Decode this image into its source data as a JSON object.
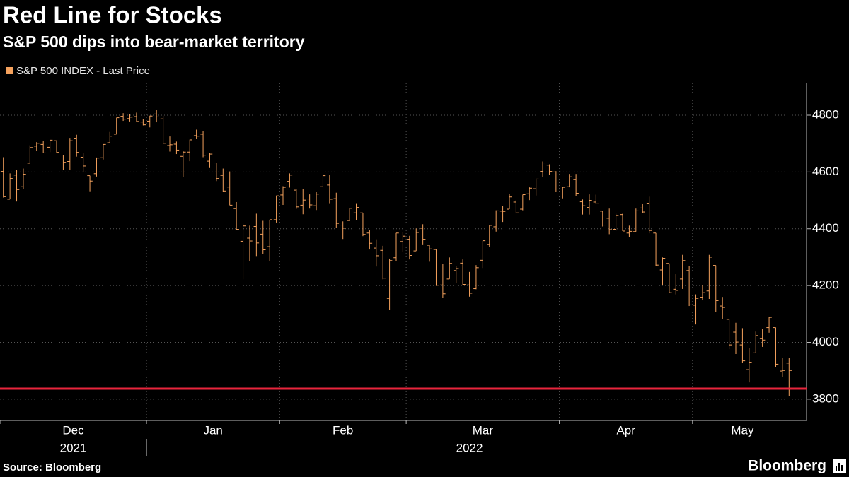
{
  "chart_data": {
    "type": "ohlc",
    "title": "Red Line for Stocks",
    "subtitle": "S&P 500 dips into bear-market territory",
    "source": "Source: Bloomberg",
    "brand": "Bloomberg",
    "ylim": [
      3725,
      4912
    ],
    "yticks": [
      3800,
      4000,
      4200,
      4400,
      4600,
      4800
    ],
    "grid": true,
    "legend": "top-left",
    "reference_line": {
      "value": 3837,
      "color": "#e8253c"
    },
    "categories": [
      "Dec",
      "Dec",
      "Dec",
      "Dec",
      "Dec",
      "Dec",
      "Dec",
      "Dec",
      "Dec",
      "Dec",
      "Dec",
      "Dec",
      "Dec",
      "Dec",
      "Dec",
      "Dec",
      "Dec",
      "Dec",
      "Dec",
      "Dec",
      "Dec",
      "Dec",
      "Jan",
      "Jan",
      "Jan",
      "Jan",
      "Jan",
      "Jan",
      "Jan",
      "Jan",
      "Jan",
      "Jan",
      "Jan",
      "Jan",
      "Jan",
      "Jan",
      "Jan",
      "Jan",
      "Jan",
      "Jan",
      "Jan",
      "Jan",
      "Feb",
      "Feb",
      "Feb",
      "Feb",
      "Feb",
      "Feb",
      "Feb",
      "Feb",
      "Feb",
      "Feb",
      "Feb",
      "Feb",
      "Feb",
      "Feb",
      "Feb",
      "Feb",
      "Feb",
      "Feb",
      "Feb",
      "Mar",
      "Mar",
      "Mar",
      "Mar",
      "Mar",
      "Mar",
      "Mar",
      "Mar",
      "Mar",
      "Mar",
      "Mar",
      "Mar",
      "Mar",
      "Mar",
      "Mar",
      "Mar",
      "Mar",
      "Mar",
      "Mar",
      "Mar",
      "Mar",
      "Mar",
      "Mar",
      "Apr",
      "Apr",
      "Apr",
      "Apr",
      "Apr",
      "Apr",
      "Apr",
      "Apr",
      "Apr",
      "Apr",
      "Apr",
      "Apr",
      "Apr",
      "Apr",
      "Apr",
      "Apr",
      "Apr",
      "Apr",
      "Apr",
      "Apr",
      "May",
      "May",
      "May",
      "May",
      "May",
      "May",
      "May",
      "May",
      "May",
      "May",
      "May",
      "May",
      "May",
      "May",
      "May"
    ],
    "years": [
      "2021",
      "2021",
      "2021",
      "2021",
      "2021",
      "2021",
      "2021",
      "2021",
      "2021",
      "2021",
      "2021",
      "2021",
      "2021",
      "2021",
      "2021",
      "2021",
      "2021",
      "2021",
      "2021",
      "2021",
      "2021",
      "2021",
      "2022",
      "2022",
      "2022",
      "2022",
      "2022",
      "2022",
      "2022",
      "2022",
      "2022",
      "2022",
      "2022",
      "2022",
      "2022",
      "2022",
      "2022",
      "2022",
      "2022",
      "2022",
      "2022",
      "2022",
      "2022",
      "2022",
      "2022",
      "2022",
      "2022",
      "2022",
      "2022",
      "2022",
      "2022",
      "2022",
      "2022",
      "2022",
      "2022",
      "2022",
      "2022",
      "2022",
      "2022",
      "2022",
      "2022",
      "2022",
      "2022",
      "2022",
      "2022",
      "2022",
      "2022",
      "2022",
      "2022",
      "2022",
      "2022",
      "2022",
      "2022",
      "2022",
      "2022",
      "2022",
      "2022",
      "2022",
      "2022",
      "2022",
      "2022",
      "2022",
      "2022",
      "2022",
      "2022",
      "2022",
      "2022",
      "2022",
      "2022",
      "2022",
      "2022",
      "2022",
      "2022",
      "2022",
      "2022",
      "2022",
      "2022",
      "2022",
      "2022",
      "2022",
      "2022",
      "2022",
      "2022",
      "2022",
      "2022",
      "2022",
      "2022",
      "2022",
      "2022",
      "2022",
      "2022",
      "2022",
      "2022",
      "2022",
      "2022",
      "2022",
      "2022",
      "2022",
      "2022"
    ],
    "series": [
      {
        "name": "S&P 500 INDEX - Last Price",
        "color": "#f5a25d",
        "open": [
          4602,
          4504,
          4589,
          4548,
          4631,
          4691,
          4697,
          4687,
          4710,
          4642,
          4637,
          4719,
          4652,
          4587,
          4594,
          4650,
          4703,
          4733,
          4796,
          4788,
          4795,
          4776,
          4779,
          4804,
          4787,
          4693,
          4698,
          4655,
          4670,
          4728,
          4733,
          4638,
          4632,
          4588,
          4547,
          4471,
          4356,
          4367,
          4408,
          4381,
          4337,
          4432,
          4519,
          4567,
          4536,
          4483,
          4505,
          4481,
          4548,
          4554,
          4506,
          4413,
          4429,
          4456,
          4456,
          4385,
          4332,
          4324,
          4155,
          4298,
          4355,
          4363,
          4322,
          4402,
          4342,
          4327,
          4202,
          4223,
          4253,
          4279,
          4202,
          4189,
          4289,
          4345,
          4407,
          4462,
          4469,
          4494,
          4469,
          4523,
          4541,
          4602,
          4624,
          4600,
          4540,
          4548,
          4573,
          4495,
          4475,
          4494,
          4462,
          4437,
          4398,
          4450,
          4385,
          4390,
          4473,
          4490,
          4385,
          4255,
          4278,
          4187,
          4223,
          4253,
          4131,
          4159,
          4181,
          4271,
          4128,
          4081,
          4036,
          3991,
          3904,
          3963,
          4013,
          4052,
          4052,
          3899,
          3927
        ],
        "high": [
          4652,
          4595,
          4608,
          4612,
          4694,
          4705,
          4708,
          4713,
          4710,
          4660,
          4720,
          4731,
          4666,
          4587,
          4651,
          4698,
          4741,
          4791,
          4807,
          4805,
          4809,
          4787,
          4798,
          4819,
          4798,
          4725,
          4707,
          4673,
          4714,
          4749,
          4745,
          4666,
          4632,
          4612,
          4602,
          4494,
          4418,
          4411,
          4453,
          4428,
          4432,
          4517,
          4550,
          4595,
          4540,
          4540,
          4521,
          4531,
          4590,
          4589,
          4527,
          4426,
          4472,
          4490,
          4456,
          4395,
          4363,
          4340,
          4295,
          4385,
          4388,
          4375,
          4401,
          4416,
          4343,
          4327,
          4276,
          4299,
          4268,
          4292,
          4248,
          4272,
          4358,
          4412,
          4465,
          4481,
          4522,
          4501,
          4520,
          4546,
          4575,
          4637,
          4627,
          4603,
          4548,
          4593,
          4593,
          4503,
          4521,
          4520,
          4464,
          4471,
          4453,
          4453,
          4411,
          4471,
          4489,
          4513,
          4385,
          4299,
          4278,
          4240,
          4308,
          4269,
          4169,
          4200,
          4308,
          4271,
          4160,
          4082,
          4069,
          4050,
          3981,
          4038,
          4047,
          4090,
          4052,
          3946,
          3944
        ],
        "low": [
          4510,
          4504,
          4496,
          4541,
          4631,
          4674,
          4666,
          4670,
          4667,
          4607,
          4608,
          4654,
          4600,
          4532,
          4584,
          4644,
          4703,
          4733,
          4780,
          4778,
          4776,
          4764,
          4757,
          4775,
          4699,
          4672,
          4663,
          4582,
          4638,
          4717,
          4652,
          4614,
          4568,
          4531,
          4483,
          4395,
          4222,
          4287,
          4304,
          4310,
          4287,
          4422,
          4484,
          4545,
          4470,
          4451,
          4471,
          4466,
          4548,
          4490,
          4402,
          4364,
          4429,
          4430,
          4374,
          4327,
          4267,
          4222,
          4114,
          4287,
          4318,
          4292,
          4322,
          4345,
          4284,
          4199,
          4157,
          4223,
          4209,
          4201,
          4161,
          4187,
          4262,
          4335,
          4390,
          4424,
          4469,
          4455,
          4465,
          4501,
          4517,
          4582,
          4589,
          4531,
          4507,
          4546,
          4514,
          4450,
          4450,
          4487,
          4408,
          4381,
          4393,
          4392,
          4370,
          4390,
          4455,
          4384,
          4268,
          4201,
          4175,
          4169,
          4188,
          4128,
          4063,
          4148,
          4153,
          4106,
          4081,
          3976,
          3959,
          3928,
          3859,
          3963,
          3984,
          4034,
          3912,
          3877,
          3810
        ],
        "close": [
          4513,
          4577,
          4538,
          4592,
          4686,
          4701,
          4667,
          4712,
          4669,
          4634,
          4710,
          4669,
          4621,
          4568,
          4649,
          4697,
          4726,
          4791,
          4786,
          4793,
          4778,
          4766,
          4797,
          4794,
          4701,
          4696,
          4677,
          4670,
          4713,
          4726,
          4659,
          4663,
          4577,
          4533,
          4483,
          4398,
          4410,
          4357,
          4350,
          4326,
          4432,
          4516,
          4546,
          4589,
          4477,
          4501,
          4484,
          4522,
          4587,
          4504,
          4419,
          4402,
          4472,
          4475,
          4380,
          4349,
          4305,
          4226,
          4288,
          4385,
          4374,
          4306,
          4387,
          4363,
          4329,
          4201,
          4171,
          4278,
          4260,
          4204,
          4173,
          4263,
          4358,
          4412,
          4463,
          4461,
          4512,
          4456,
          4520,
          4543,
          4575,
          4632,
          4602,
          4530,
          4546,
          4583,
          4525,
          4481,
          4500,
          4488,
          4413,
          4397,
          4447,
          4392,
          4391,
          4463,
          4459,
          4394,
          4272,
          4296,
          4175,
          4183,
          4288,
          4132,
          4155,
          4175,
          4300,
          4147,
          4123,
          3991,
          4001,
          3935,
          3930,
          4024,
          4008,
          4088,
          3923,
          3901,
          3901
        ]
      }
    ]
  }
}
